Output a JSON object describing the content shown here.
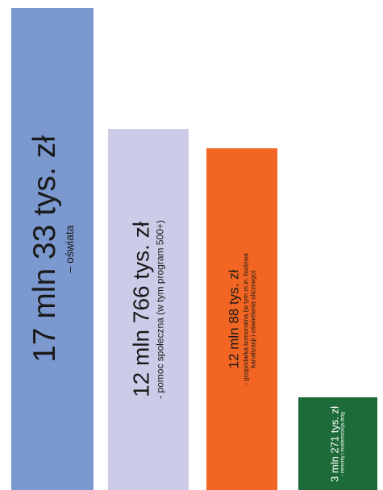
{
  "chart_data": {
    "type": "bar",
    "title": "",
    "xlabel": "",
    "ylabel": "",
    "ylim": [
      0,
      17033
    ],
    "value_unit": "tys. zł",
    "bars": [
      {
        "value": 17033,
        "value_label": "17 mln 33 tys. zł",
        "description": "– oświata",
        "color": "#7b98cf"
      },
      {
        "value": 12766,
        "value_label": "12 mln 766 tys. zł",
        "description": "- pomoc społeczna (w tym program 500+)",
        "color": "#cdcce8"
      },
      {
        "value": 12088,
        "value_label": "12 mln 88 tys. zł",
        "description": "- gospodarka komunalna (w tym m.in. budowa kanalizacji i oświetlenia ulicznego)",
        "color": "#f26522"
      },
      {
        "value": 3271,
        "value_label": "3 mln 271 tys. zł",
        "description": "- remonty i modernizacja dróg",
        "color": "#1e6b3a"
      }
    ]
  }
}
